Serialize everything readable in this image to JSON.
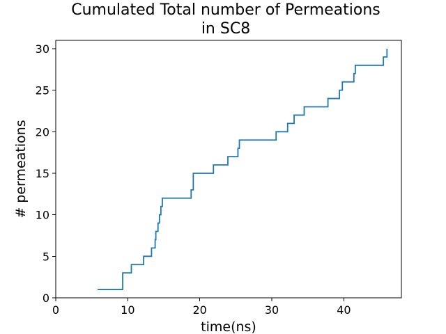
{
  "chart_data": {
    "type": "line",
    "title": [
      "Cumulated Total number of Permeations",
      "in SC8"
    ],
    "xlabel": "time(ns)",
    "ylabel": "# permeations",
    "xlim": [
      0,
      48
    ],
    "ylim": [
      0,
      31
    ],
    "xticks": [
      0,
      10,
      20,
      30,
      40
    ],
    "yticks": [
      0,
      5,
      10,
      15,
      20,
      25,
      30
    ],
    "grid": false,
    "legend": "none",
    "step": "post",
    "series": [
      {
        "color": "#1f77b4",
        "x": [
          5.8,
          9.3,
          10.5,
          12.2,
          13.3,
          13.8,
          13.9,
          14.2,
          14.4,
          14.6,
          14.7,
          14.8,
          18.8,
          19.1,
          21.9,
          23.9,
          25.3,
          25.5,
          30.6,
          32.2,
          33.1,
          34.5,
          37.8,
          39.4,
          39.8,
          41.1,
          41.4,
          41.6,
          45.5,
          45.9,
          46.0
        ],
        "y": [
          1,
          3,
          4,
          5,
          6,
          7,
          8,
          9,
          10,
          11,
          11,
          12,
          13,
          15,
          16,
          17,
          18,
          19,
          20,
          21,
          22,
          23,
          24,
          25,
          26,
          26,
          27,
          28,
          29,
          29,
          30
        ]
      }
    ]
  }
}
